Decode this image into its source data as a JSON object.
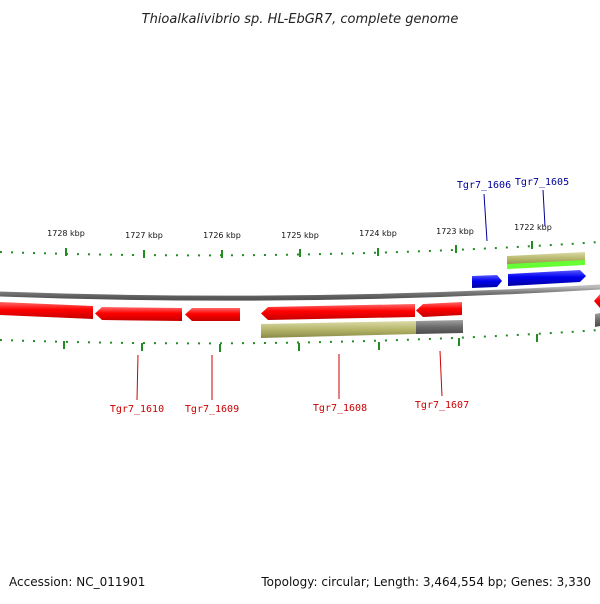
{
  "title": "Thioalkalivibrio sp. HL-EbGR7, complete genome",
  "footer": {
    "accession": "Accession: NC_011901",
    "summary": "Topology: circular; Length: 3,464,554 bp; Genes: 3,330"
  },
  "ticks": [
    {
      "label": "1728 kbp"
    },
    {
      "label": "1727 kbp"
    },
    {
      "label": "1726 kbp"
    },
    {
      "label": "1725 kbp"
    },
    {
      "label": "1724 kbp"
    },
    {
      "label": "1723 kbp"
    },
    {
      "label": "1722 kbp"
    }
  ],
  "genes_bottom": [
    {
      "label": "Tgr7_1610"
    },
    {
      "label": "Tgr7_1609"
    },
    {
      "label": "Tgr7_1608"
    },
    {
      "label": "Tgr7_1607"
    }
  ],
  "genes_top": [
    {
      "label": "Tgr7_1606"
    },
    {
      "label": "Tgr7_1605"
    }
  ],
  "colors": {
    "reverse_cds": "#ff0000",
    "forward_cds": "#0000ee",
    "bottom_label": "#cc0000",
    "top_label": "#000099",
    "backbone": "#888888",
    "tick": "#228b22",
    "olive_feature": "#b5b56a",
    "gray_feature": "#6b6b6b",
    "green_feature": "#66ff33"
  }
}
